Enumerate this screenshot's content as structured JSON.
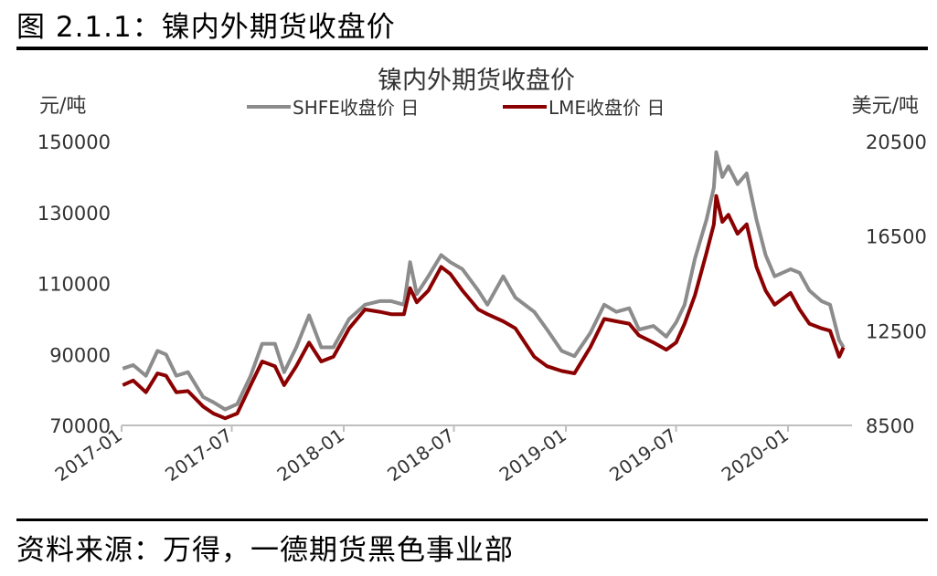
{
  "figure_caption": "图 2.1.1：镍内外期货收盘价",
  "source_note": "资料来源：万得，一德期货黑色事业部",
  "colors": {
    "shfe": "#8c8c8c",
    "lme": "#8b0000",
    "axis": "#bfbfbf",
    "text": "#333333"
  },
  "chart_data": {
    "type": "line",
    "title": "镍内外期货收盘价",
    "ylabel": "元/吨",
    "y2label": "美元/吨",
    "ylim": [
      70000,
      150000
    ],
    "y2lim": [
      8500,
      20500
    ],
    "yticks": [
      "150000",
      "130000",
      "110000",
      "90000",
      "70000"
    ],
    "y2ticks": [
      "20500",
      "16500",
      "12500",
      "8500"
    ],
    "xlim": [
      "2017-01-01",
      "2020-04-15"
    ],
    "xticks": [
      {
        "date": "2017-01-01",
        "label": "2017-01"
      },
      {
        "date": "2017-07-01",
        "label": "2017-07"
      },
      {
        "date": "2018-01-01",
        "label": "2018-01"
      },
      {
        "date": "2018-07-01",
        "label": "2018-07"
      },
      {
        "date": "2019-01-01",
        "label": "2019-01"
      },
      {
        "date": "2019-07-01",
        "label": "2019-07"
      },
      {
        "date": "2020-01-01",
        "label": "2020-01"
      }
    ],
    "legend_position": "top-center",
    "series": [
      {
        "name": "SHFE收盘价 日",
        "axis": "left",
        "points": [
          [
            "2017-01-03",
            86000
          ],
          [
            "2017-01-20",
            87000
          ],
          [
            "2017-02-10",
            84000
          ],
          [
            "2017-03-01",
            91000
          ],
          [
            "2017-03-15",
            90000
          ],
          [
            "2017-04-01",
            84000
          ],
          [
            "2017-04-20",
            85000
          ],
          [
            "2017-05-15",
            78000
          ],
          [
            "2017-06-01",
            76500
          ],
          [
            "2017-06-20",
            74500
          ],
          [
            "2017-07-10",
            76000
          ],
          [
            "2017-08-01",
            84000
          ],
          [
            "2017-08-20",
            93000
          ],
          [
            "2017-09-10",
            93000
          ],
          [
            "2017-09-25",
            85000
          ],
          [
            "2017-10-15",
            92000
          ],
          [
            "2017-11-05",
            101000
          ],
          [
            "2017-11-25",
            92000
          ],
          [
            "2017-12-15",
            92000
          ],
          [
            "2018-01-10",
            100000
          ],
          [
            "2018-02-05",
            104000
          ],
          [
            "2018-03-01",
            105000
          ],
          [
            "2018-03-20",
            105000
          ],
          [
            "2018-04-10",
            104000
          ],
          [
            "2018-04-20",
            116000
          ],
          [
            "2018-05-01",
            107000
          ],
          [
            "2018-05-20",
            112000
          ],
          [
            "2018-06-10",
            118000
          ],
          [
            "2018-06-25",
            116000
          ],
          [
            "2018-07-15",
            114000
          ],
          [
            "2018-08-10",
            108000
          ],
          [
            "2018-08-25",
            104000
          ],
          [
            "2018-09-20",
            112000
          ],
          [
            "2018-10-10",
            106000
          ],
          [
            "2018-11-10",
            102000
          ],
          [
            "2018-12-01",
            97000
          ],
          [
            "2018-12-25",
            91000
          ],
          [
            "2019-01-15",
            89500
          ],
          [
            "2019-02-10",
            96000
          ],
          [
            "2019-03-05",
            104000
          ],
          [
            "2019-03-25",
            102000
          ],
          [
            "2019-04-15",
            103000
          ],
          [
            "2019-05-01",
            97000
          ],
          [
            "2019-05-25",
            98000
          ],
          [
            "2019-06-15",
            95000
          ],
          [
            "2019-07-01",
            99000
          ],
          [
            "2019-07-15",
            104000
          ],
          [
            "2019-08-01",
            117000
          ],
          [
            "2019-08-20",
            128000
          ],
          [
            "2019-09-01",
            137000
          ],
          [
            "2019-09-05",
            147000
          ],
          [
            "2019-09-15",
            140000
          ],
          [
            "2019-09-25",
            143000
          ],
          [
            "2019-10-10",
            138000
          ],
          [
            "2019-10-25",
            141000
          ],
          [
            "2019-11-10",
            128000
          ],
          [
            "2019-11-25",
            118000
          ],
          [
            "2019-12-10",
            112000
          ],
          [
            "2020-01-05",
            114000
          ],
          [
            "2020-01-20",
            113000
          ],
          [
            "2020-02-05",
            108000
          ],
          [
            "2020-02-25",
            105000
          ],
          [
            "2020-03-10",
            104000
          ],
          [
            "2020-03-25",
            94000
          ],
          [
            "2020-04-01",
            92000
          ]
        ]
      },
      {
        "name": "LME收盘价 日",
        "axis": "right",
        "points": [
          [
            "2017-01-03",
            10200
          ],
          [
            "2017-01-20",
            10400
          ],
          [
            "2017-02-10",
            9900
          ],
          [
            "2017-03-01",
            10700
          ],
          [
            "2017-03-15",
            10600
          ],
          [
            "2017-04-01",
            9900
          ],
          [
            "2017-04-20",
            9950
          ],
          [
            "2017-05-15",
            9300
          ],
          [
            "2017-06-01",
            9000
          ],
          [
            "2017-06-20",
            8800
          ],
          [
            "2017-07-10",
            9000
          ],
          [
            "2017-08-01",
            10200
          ],
          [
            "2017-08-20",
            11200
          ],
          [
            "2017-09-10",
            11000
          ],
          [
            "2017-09-25",
            10200
          ],
          [
            "2017-10-15",
            11000
          ],
          [
            "2017-11-05",
            12000
          ],
          [
            "2017-11-25",
            11200
          ],
          [
            "2017-12-15",
            11400
          ],
          [
            "2018-01-10",
            12600
          ],
          [
            "2018-02-05",
            13400
          ],
          [
            "2018-03-01",
            13300
          ],
          [
            "2018-03-20",
            13200
          ],
          [
            "2018-04-10",
            13200
          ],
          [
            "2018-04-20",
            14300
          ],
          [
            "2018-05-01",
            13700
          ],
          [
            "2018-05-20",
            14200
          ],
          [
            "2018-06-10",
            15200
          ],
          [
            "2018-06-25",
            14900
          ],
          [
            "2018-07-15",
            14200
          ],
          [
            "2018-08-10",
            13400
          ],
          [
            "2018-08-25",
            13200
          ],
          [
            "2018-09-20",
            12900
          ],
          [
            "2018-10-10",
            12600
          ],
          [
            "2018-11-10",
            11400
          ],
          [
            "2018-12-01",
            11000
          ],
          [
            "2018-12-25",
            10800
          ],
          [
            "2019-01-15",
            10700
          ],
          [
            "2019-02-10",
            11800
          ],
          [
            "2019-03-05",
            13000
          ],
          [
            "2019-03-25",
            12900
          ],
          [
            "2019-04-15",
            12800
          ],
          [
            "2019-05-01",
            12300
          ],
          [
            "2019-05-25",
            12000
          ],
          [
            "2019-06-15",
            11700
          ],
          [
            "2019-07-01",
            12000
          ],
          [
            "2019-07-15",
            12800
          ],
          [
            "2019-08-01",
            14000
          ],
          [
            "2019-08-20",
            15800
          ],
          [
            "2019-09-01",
            17000
          ],
          [
            "2019-09-05",
            18200
          ],
          [
            "2019-09-15",
            17100
          ],
          [
            "2019-09-25",
            17400
          ],
          [
            "2019-10-10",
            16600
          ],
          [
            "2019-10-25",
            17000
          ],
          [
            "2019-11-10",
            15200
          ],
          [
            "2019-11-25",
            14200
          ],
          [
            "2019-12-10",
            13600
          ],
          [
            "2020-01-05",
            14100
          ],
          [
            "2020-01-20",
            13400
          ],
          [
            "2020-02-05",
            12800
          ],
          [
            "2020-02-25",
            12600
          ],
          [
            "2020-03-10",
            12500
          ],
          [
            "2020-03-25",
            11400
          ],
          [
            "2020-04-01",
            11800
          ]
        ]
      }
    ]
  }
}
